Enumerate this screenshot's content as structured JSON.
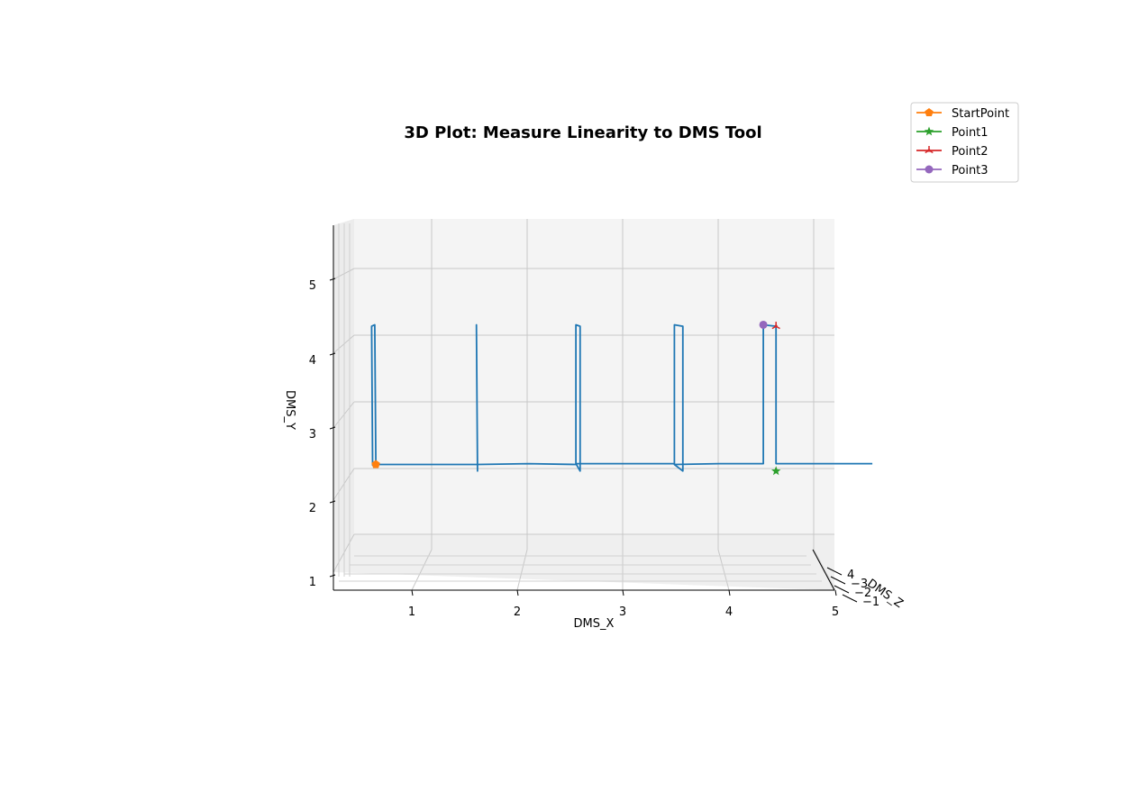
{
  "chart_data": {
    "type": "line",
    "projection": "3d",
    "title": "3D Plot: Measure Linearity to DMS Tool",
    "xlabel": "DMS_X",
    "ylabel": "DMS_Y",
    "zlabel": "DMS_Z",
    "xticks": [
      "1",
      "2",
      "3",
      "4",
      "5"
    ],
    "yticks": [
      "1",
      "2",
      "3",
      "4",
      "5"
    ],
    "zticks": [
      "−1",
      "−2",
      "−3",
      "4"
    ],
    "grid": true,
    "legend_position": "top-right",
    "colors": {
      "trajectory": "#1f77b4",
      "StartPoint": "#ff7f0e",
      "Point1": "#2ca02c",
      "Point2": "#d62728",
      "Point3": "#9467bd"
    },
    "series": [
      {
        "name": "",
        "color": "#1f77b4",
        "points": [
          [
            0.67,
            2.97
          ],
          [
            0.64,
            2.97
          ],
          [
            0.63,
            2.96
          ],
          [
            0.62,
            4.84
          ],
          [
            0.65,
            4.86
          ],
          [
            0.66,
            2.97
          ],
          [
            1.2,
            2.97
          ],
          [
            1.6,
            2.97
          ],
          [
            1.62,
            2.97
          ],
          [
            1.61,
            4.86
          ],
          [
            1.62,
            2.88
          ],
          [
            1.62,
            2.97
          ],
          [
            2.1,
            2.98
          ],
          [
            2.55,
            2.97
          ],
          [
            2.55,
            4.86
          ],
          [
            2.59,
            4.84
          ],
          [
            2.59,
            2.88
          ],
          [
            2.55,
            2.98
          ],
          [
            3.0,
            2.98
          ],
          [
            3.48,
            2.98
          ],
          [
            3.48,
            4.86
          ],
          [
            3.56,
            4.84
          ],
          [
            3.56,
            2.88
          ],
          [
            3.48,
            2.97
          ],
          [
            3.9,
            2.98
          ],
          [
            4.32,
            2.98
          ],
          [
            4.32,
            4.86
          ],
          [
            4.44,
            4.84
          ],
          [
            4.44,
            2.98
          ],
          [
            4.44,
            2.98
          ],
          [
            4.9,
            2.98
          ],
          [
            5.35,
            2.98
          ]
        ]
      }
    ],
    "markers": [
      {
        "name": "StartPoint",
        "symbol": "pentagon",
        "color": "#ff7f0e",
        "x": 0.66,
        "y": 2.97
      },
      {
        "name": "Point1",
        "symbol": "star",
        "color": "#2ca02c",
        "x": 4.44,
        "y": 2.88
      },
      {
        "name": "Point2",
        "symbol": "tri-star",
        "color": "#d62728",
        "x": 4.44,
        "y": 4.84
      },
      {
        "name": "Point3",
        "symbol": "circle",
        "color": "#9467bd",
        "x": 4.32,
        "y": 4.86
      }
    ]
  }
}
